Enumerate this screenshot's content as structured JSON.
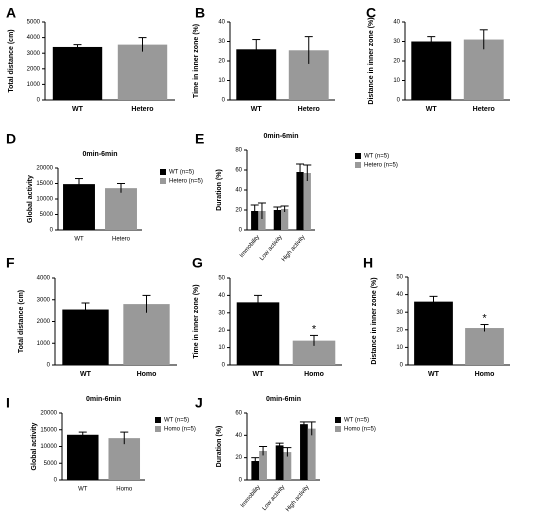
{
  "chart_data": [
    {
      "type": "bar",
      "label": "A",
      "ylabel": "Total distance (cm)",
      "categories": [
        "WT",
        "Hetero"
      ],
      "values": [
        3400,
        3550
      ],
      "errors": [
        150,
        450
      ],
      "colors": [
        "#000000",
        "#999999"
      ],
      "ylim": [
        0,
        5000
      ],
      "yticks": [
        0,
        1000,
        2000,
        3000,
        4000,
        5000
      ]
    },
    {
      "type": "bar",
      "label": "B",
      "ylabel": "Time in inner zone (%)",
      "categories": [
        "WT",
        "Hetero"
      ],
      "values": [
        26,
        25.5
      ],
      "errors": [
        5,
        7
      ],
      "colors": [
        "#000000",
        "#999999"
      ],
      "ylim": [
        0,
        40
      ],
      "yticks": [
        0,
        10,
        20,
        30,
        40
      ]
    },
    {
      "type": "bar",
      "label": "C",
      "ylabel": "Distance in inner zone (%)",
      "categories": [
        "WT",
        "Hetero"
      ],
      "values": [
        30,
        31
      ],
      "errors": [
        2.5,
        5
      ],
      "colors": [
        "#000000",
        "#999999"
      ],
      "ylim": [
        0,
        40
      ],
      "yticks": [
        0,
        10,
        20,
        30,
        40
      ]
    },
    {
      "type": "grouped-bar",
      "label": "D",
      "title": "0min-6min",
      "ylabel": "Global activity",
      "categories": [
        "WT",
        "Hetero"
      ],
      "series": [
        {
          "name": "WT (n=5)",
          "color": "#000000",
          "values": [
            14800,
            null
          ],
          "errors": [
            1800,
            null
          ]
        },
        {
          "name": "Hetero (n=5)",
          "color": "#999999",
          "values": [
            null,
            13500
          ],
          "errors": [
            null,
            1500
          ]
        }
      ],
      "ylim": [
        0,
        20000
      ],
      "yticks": [
        0,
        5000,
        10000,
        15000,
        20000
      ]
    },
    {
      "type": "grouped-bar",
      "label": "E",
      "title": "0min-6min",
      "ylabel": "Duration (%)",
      "categories": [
        "Immobility",
        "Low activity",
        "High activity"
      ],
      "series": [
        {
          "name": "WT (n=5)",
          "color": "#000000",
          "values": [
            19,
            20,
            58
          ],
          "errors": [
            6,
            3,
            8
          ]
        },
        {
          "name": "Hetero (n=5)",
          "color": "#999999",
          "values": [
            19,
            21,
            57
          ],
          "errors": [
            8,
            3,
            8
          ]
        }
      ],
      "ylim": [
        0,
        80
      ],
      "yticks": [
        0,
        20,
        40,
        60,
        80
      ]
    },
    {
      "type": "bar",
      "label": "F",
      "ylabel": "Total distance (cm)",
      "categories": [
        "WT",
        "Homo"
      ],
      "values": [
        2550,
        2800
      ],
      "errors": [
        300,
        400
      ],
      "colors": [
        "#000000",
        "#999999"
      ],
      "ylim": [
        0,
        4000
      ],
      "yticks": [
        0,
        1000,
        2000,
        3000,
        4000
      ]
    },
    {
      "type": "bar",
      "label": "G",
      "ylabel": "Time in inner zone (%)",
      "categories": [
        "WT",
        "Homo"
      ],
      "values": [
        36,
        14
      ],
      "errors": [
        4,
        3
      ],
      "annotations": [
        null,
        "*"
      ],
      "colors": [
        "#000000",
        "#999999"
      ],
      "ylim": [
        0,
        50
      ],
      "yticks": [
        0,
        10,
        20,
        30,
        40,
        50
      ]
    },
    {
      "type": "bar",
      "label": "H",
      "ylabel": "Distance in inner zone (%)",
      "categories": [
        "WT",
        "Homo"
      ],
      "values": [
        36,
        21
      ],
      "errors": [
        3,
        2
      ],
      "annotations": [
        null,
        "*"
      ],
      "colors": [
        "#000000",
        "#999999"
      ],
      "ylim": [
        0,
        50
      ],
      "yticks": [
        0,
        10,
        20,
        30,
        40,
        50
      ]
    },
    {
      "type": "grouped-bar",
      "label": "I",
      "title": "0min-6min",
      "ylabel": "Global activity",
      "categories": [
        "WT",
        "Homo"
      ],
      "series": [
        {
          "name": "WT (n=5)",
          "color": "#000000",
          "values": [
            13500,
            null
          ],
          "errors": [
            800,
            null
          ]
        },
        {
          "name": "Homo (n=5)",
          "color": "#999999",
          "values": [
            null,
            12500
          ],
          "errors": [
            null,
            1800
          ]
        }
      ],
      "ylim": [
        0,
        20000
      ],
      "yticks": [
        0,
        5000,
        10000,
        15000,
        20000
      ]
    },
    {
      "type": "grouped-bar",
      "label": "J",
      "title": "0min-6min",
      "ylabel": "Duration (%)",
      "categories": [
        "Immobility",
        "Low activity",
        "High activity"
      ],
      "series": [
        {
          "name": "WT (n=5)",
          "color": "#000000",
          "values": [
            17,
            31,
            50
          ],
          "errors": [
            3,
            2,
            2
          ]
        },
        {
          "name": "Homo (n=5)",
          "color": "#999999",
          "values": [
            26,
            25,
            46
          ],
          "errors": [
            4,
            4,
            6
          ]
        }
      ],
      "ylim": [
        0,
        60
      ],
      "yticks": [
        0,
        20,
        40,
        60
      ]
    }
  ]
}
